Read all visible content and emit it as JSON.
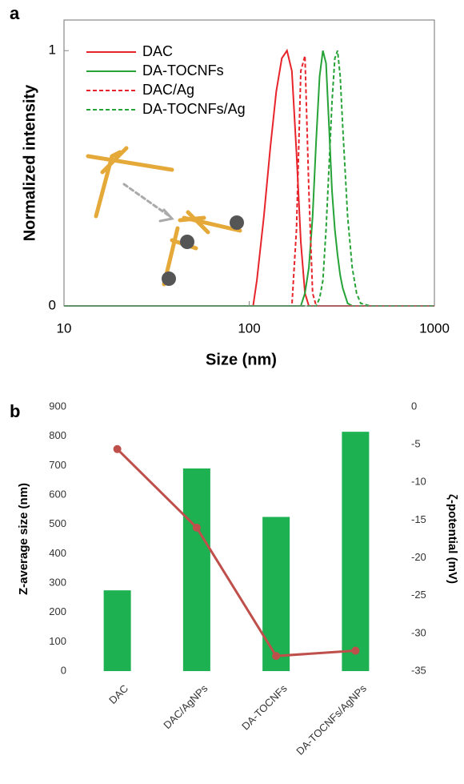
{
  "chart_data": [
    {
      "type": "line",
      "panel_label": "a",
      "xlabel": "Size (nm)",
      "ylabel": "Normalized intensity",
      "xscale": "log",
      "xlim": [
        10,
        1000
      ],
      "xticks": [
        10,
        100,
        1000
      ],
      "ylim": [
        0,
        1.12
      ],
      "yticks": [
        0,
        1
      ],
      "legend": "upper left",
      "x": [
        10,
        100,
        105,
        110,
        120,
        130,
        140,
        150,
        160,
        170,
        180,
        190,
        200,
        210,
        220,
        230,
        240,
        250,
        260,
        270,
        280,
        290,
        300,
        310,
        320,
        340,
        360,
        380,
        400,
        450,
        1000
      ],
      "series": [
        {
          "name": "DAC",
          "color": "#e8242b",
          "dashed": false,
          "values": [
            0,
            0,
            0,
            0.1,
            0.35,
            0.62,
            0.84,
            0.97,
            1.0,
            0.92,
            0.6,
            0.25,
            0.05,
            0,
            0,
            0,
            0,
            0,
            0,
            0,
            0,
            0,
            0,
            0,
            0,
            0,
            0,
            0,
            0,
            0,
            0
          ]
        },
        {
          "name": "DA-TOCNFs",
          "color": "#26a337",
          "dashed": false,
          "values": [
            0,
            0,
            0,
            0,
            0,
            0,
            0,
            0,
            0,
            0,
            0,
            0,
            0.05,
            0.15,
            0.35,
            0.65,
            0.9,
            1.0,
            0.95,
            0.7,
            0.45,
            0.3,
            0.2,
            0.12,
            0.07,
            0.01,
            0,
            0,
            0,
            0,
            0
          ]
        },
        {
          "name": "DAC/Ag",
          "color": "#e8242b",
          "dashed": true,
          "values": [
            0,
            0,
            0,
            0,
            0,
            0,
            0,
            0,
            0,
            0,
            0.3,
            0.92,
            0.98,
            0.45,
            0.05,
            0,
            0,
            0,
            0,
            0,
            0,
            0,
            0,
            0,
            0,
            0,
            0,
            0,
            0,
            0,
            0
          ]
        },
        {
          "name": "DA-TOCNFs/Ag",
          "color": "#26a337",
          "dashed": true,
          "values": [
            0,
            0,
            0,
            0,
            0,
            0,
            0,
            0,
            0,
            0,
            0,
            0,
            0,
            0,
            0,
            0,
            0.03,
            0.1,
            0.3,
            0.55,
            0.8,
            0.97,
            1.0,
            0.9,
            0.7,
            0.35,
            0.15,
            0.05,
            0.01,
            0,
            0
          ]
        }
      ]
    },
    {
      "type": "bar",
      "panel_label": "b",
      "ylabel": "Z-average size (nm)",
      "y2label": "ζ-potential (mV)",
      "categories": [
        "DAC",
        "DAC/AgNPs",
        "DA-TOCNFs",
        "DA-TOCNFs/AgNPs"
      ],
      "ylim": [
        0,
        900
      ],
      "yticks": [
        0,
        100,
        200,
        300,
        400,
        500,
        600,
        700,
        800,
        900
      ],
      "y2lim": [
        -35,
        0
      ],
      "y2ticks": [
        -35,
        -30,
        -25,
        -20,
        -15,
        -10,
        -5,
        0
      ],
      "series": [
        {
          "type": "bar",
          "color": "#1db152",
          "values": [
            275,
            690,
            525,
            815
          ]
        },
        {
          "type": "line",
          "axis": "y2",
          "color": "#bf4f4b",
          "values": [
            -5.6,
            -16,
            -33,
            -32.3
          ]
        }
      ]
    }
  ]
}
